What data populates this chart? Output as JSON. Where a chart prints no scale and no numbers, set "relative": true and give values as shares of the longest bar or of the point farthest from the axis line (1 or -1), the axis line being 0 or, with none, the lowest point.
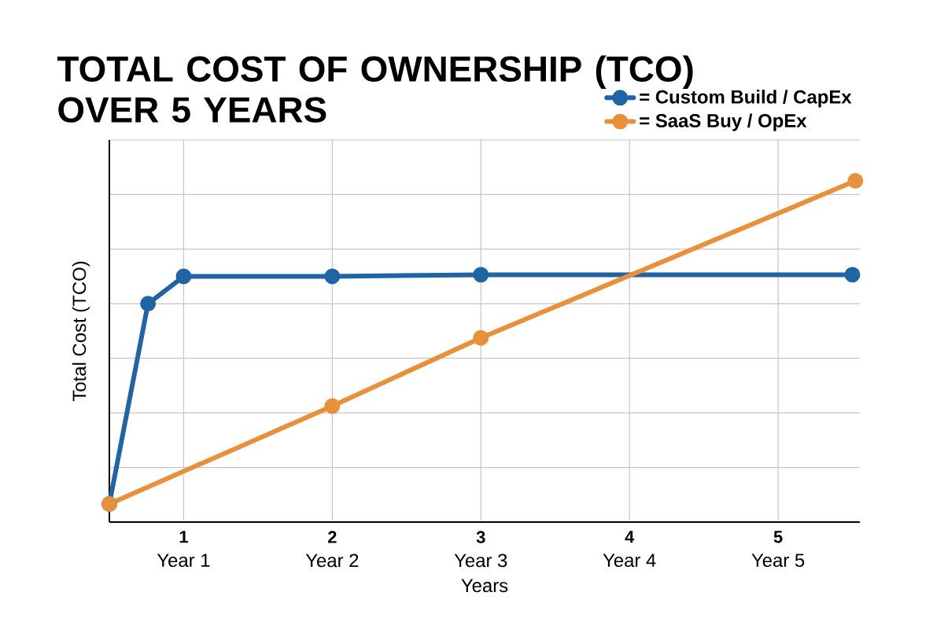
{
  "chart_data": {
    "type": "line",
    "title": "TOTAL COST OF OWNERSHIP (TCO) OVER 5 YEARS",
    "xlabel": "Years",
    "ylabel": "Total Cost (TCO)",
    "relative": true,
    "xlim": [
      0.5,
      5.55
    ],
    "xticks": [
      1,
      2,
      3,
      4,
      5
    ],
    "annotations": [
      "Year 1",
      "Year 2",
      "Year 3",
      "Year 4",
      "Year 5"
    ],
    "series": [
      {
        "name": "= Custom Build / CapEx",
        "color": "#1f65a6",
        "x": [
          0.5,
          0.76,
          1,
          2,
          3,
          5.5
        ],
        "values": [
          0.053,
          0.64,
          0.72,
          0.72,
          0.725,
          0.725
        ]
      },
      {
        "name": "= SaaS Buy / OpEx",
        "color": "#e8913a",
        "x": [
          0.5,
          2,
          3,
          5.52
        ],
        "values": [
          0.053,
          0.34,
          0.54,
          1
        ]
      }
    ],
    "grid": true,
    "legend": "top right",
    "marker": "circle",
    "line_style": "solid"
  }
}
